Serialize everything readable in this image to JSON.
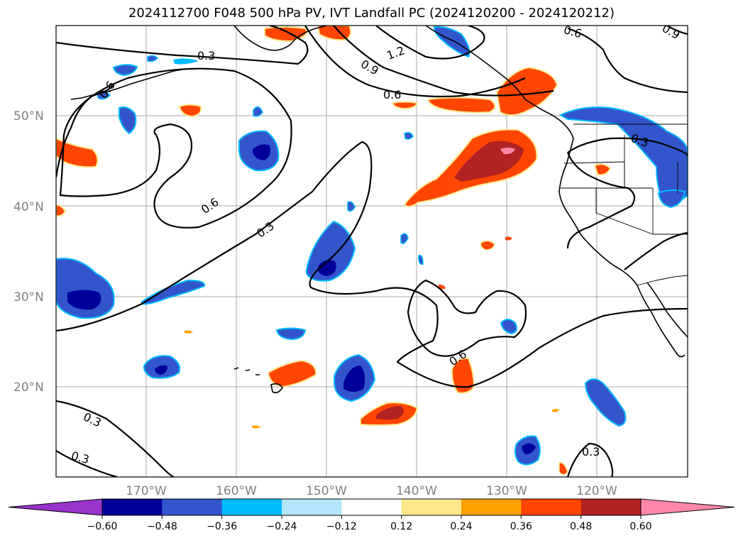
{
  "title": "2024112700 F048 500 hPa PV, IVT Landfall PC (2024120200 - 2024120212)",
  "lat_labels": [
    "50°N",
    "40°N",
    "30°N",
    "20°N"
  ],
  "lon_labels": [
    "170°W",
    "160°W",
    "150°W",
    "140°W",
    "130°W",
    "120°W"
  ],
  "contour_labels": [
    "0.3",
    "0.6",
    "0.9",
    "1.2",
    "0.6",
    "0.6",
    "0.3",
    "0.6",
    "0.6",
    "0.3",
    "0.3",
    "0.3",
    "0.3",
    "0.9"
  ],
  "colorbar": {
    "ticks": [
      "−0.60",
      "−0.48",
      "−0.36",
      "−0.24",
      "−0.12",
      "0.12",
      "0.24",
      "0.36",
      "0.48",
      "0.60"
    ],
    "colors": [
      "#9933cc",
      "#000099",
      "#3355cc",
      "#00bbff",
      "#b3e5fc",
      "#ffffff",
      "#ffe88c",
      "#ffa000",
      "#ff4500",
      "#b22222",
      "#ff88aa"
    ]
  },
  "palette": {
    "land_line": "#000000",
    "contour": "#000000",
    "grid": "#aaaaaa",
    "neg_dark": "#000099",
    "neg_mid": "#3355cc",
    "neg_light": "#00bbff",
    "pos_light": "#ffe88c",
    "pos_mid": "#ff4500",
    "pos_dark": "#b22222",
    "pos_max": "#ff88aa"
  }
}
